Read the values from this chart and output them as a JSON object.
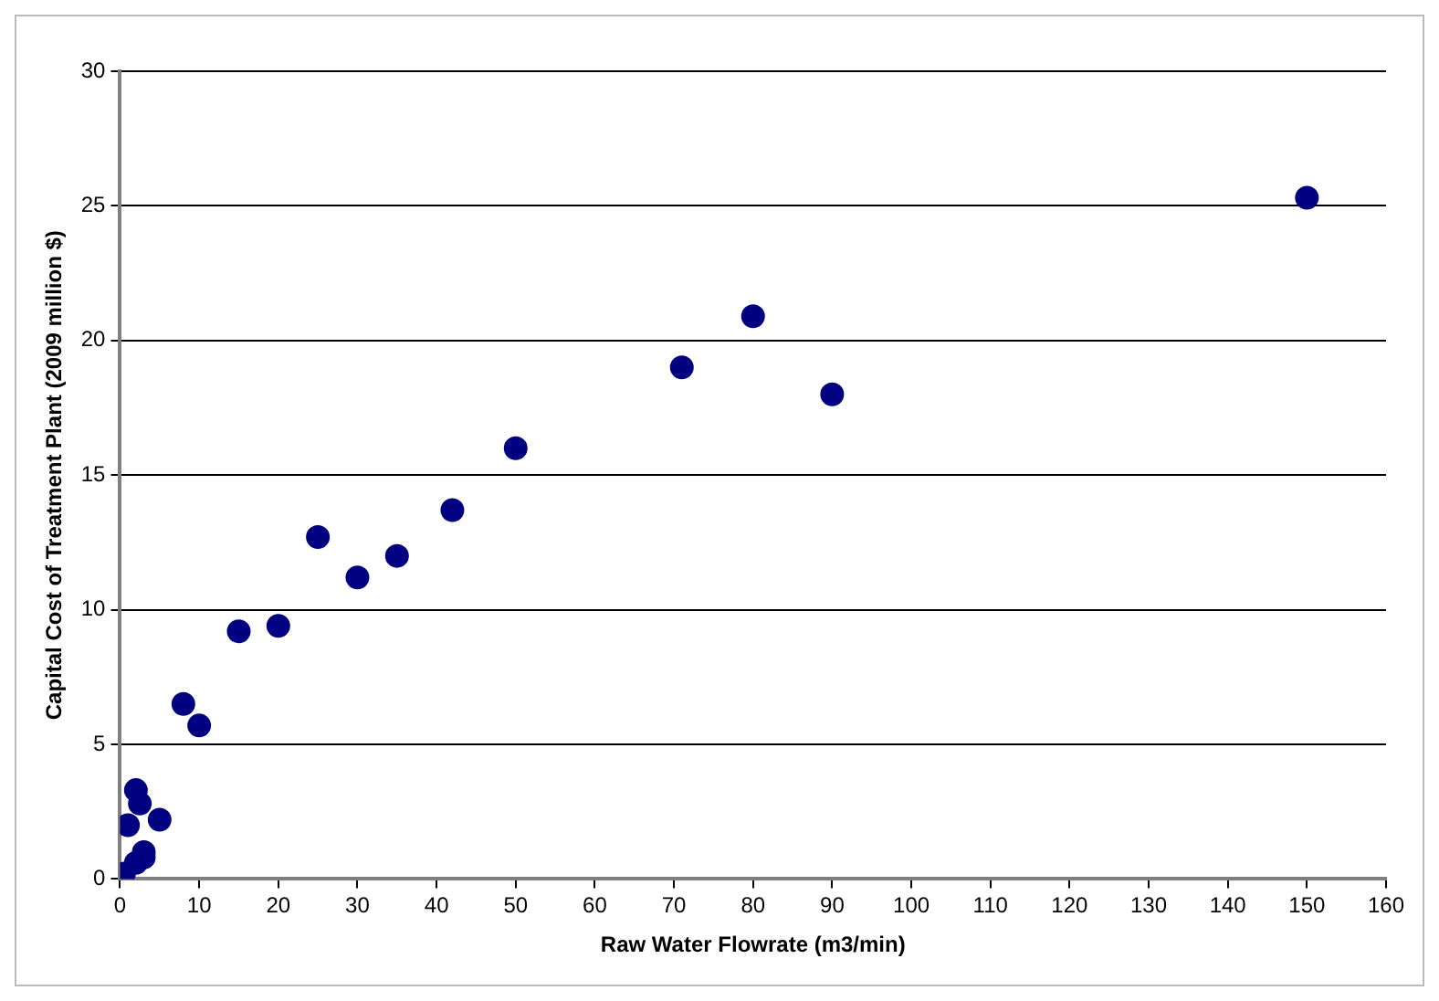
{
  "chart_data": {
    "type": "scatter",
    "xlabel": "Raw Water Flowrate (m3/min)",
    "ylabel": "Capital Cost of Treatment Plant (2009 million $)",
    "x": [
      0.5,
      1,
      2,
      2.5,
      3,
      2,
      5,
      3,
      8,
      10,
      15,
      20,
      25,
      30,
      35,
      42,
      50,
      71,
      80,
      90,
      150
    ],
    "series": [
      {
        "color": "#000080",
        "values": [
          0.2,
          2,
          3.3,
          2.8,
          1,
          0.6,
          2.2,
          0.8,
          6.5,
          5.7,
          9.2,
          9.4,
          12.7,
          11.2,
          12,
          13.7,
          16,
          19,
          20.9,
          18,
          25.3
        ]
      }
    ],
    "xlim": [
      0,
      160
    ],
    "xticks": [
      0,
      10,
      20,
      30,
      40,
      50,
      60,
      70,
      80,
      90,
      100,
      110,
      120,
      130,
      140,
      150,
      160
    ],
    "ylim": [
      0,
      30
    ],
    "yticks": [
      0,
      5,
      10,
      15,
      20,
      25,
      30
    ],
    "grid": "y",
    "legend": false,
    "marker": "circle"
  }
}
